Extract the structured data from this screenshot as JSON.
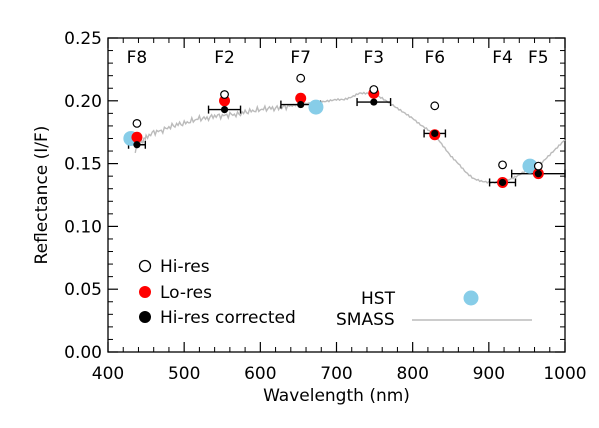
{
  "chart_data": {
    "type": "scatter",
    "xlabel": "Wavelength (nm)",
    "ylabel": "Reflectance (I/F)",
    "xlim": [
      400,
      1000
    ],
    "ylim": [
      0.0,
      0.25
    ],
    "xticks": [
      {
        "value": 400,
        "label": "400"
      },
      {
        "value": 500,
        "label": "500"
      },
      {
        "value": 600,
        "label": "600"
      },
      {
        "value": 700,
        "label": "700"
      },
      {
        "value": 800,
        "label": "800"
      },
      {
        "value": 900,
        "label": "900"
      },
      {
        "value": 1000,
        "label": "1000"
      }
    ],
    "yticks": [
      {
        "value": 0.0,
        "label": "0.00"
      },
      {
        "value": 0.05,
        "label": "0.05"
      },
      {
        "value": 0.1,
        "label": "0.10"
      },
      {
        "value": 0.15,
        "label": "0.15"
      },
      {
        "value": 0.2,
        "label": "0.20"
      },
      {
        "value": 0.25,
        "label": "0.25"
      }
    ],
    "grid": false,
    "filters": [
      {
        "label": "F8",
        "x": 438
      },
      {
        "label": "F2",
        "x": 553
      },
      {
        "label": "F7",
        "x": 653
      },
      {
        "label": "F3",
        "x": 749
      },
      {
        "label": "F6",
        "x": 829
      },
      {
        "label": "F4",
        "x": 918
      },
      {
        "label": "F5",
        "x": 965
      }
    ],
    "series": [
      {
        "name": "Hi-res",
        "marker": "open-circle",
        "color": "#000000",
        "x": [
          438,
          553,
          653,
          749,
          829,
          918,
          965
        ],
        "y": [
          0.182,
          0.205,
          0.218,
          0.209,
          0.196,
          0.149,
          0.148
        ]
      },
      {
        "name": "Lo-res",
        "marker": "filled-circle",
        "color": "#ff0000",
        "x": [
          438,
          553,
          653,
          749,
          829,
          918,
          965
        ],
        "y": [
          0.171,
          0.2,
          0.202,
          0.206,
          0.173,
          0.135,
          0.142
        ]
      },
      {
        "name": "Hi-res corrected",
        "marker": "filled-circle",
        "color": "#000000",
        "x": [
          438,
          553,
          653,
          749,
          829,
          918,
          965
        ],
        "y": [
          0.165,
          0.193,
          0.197,
          0.199,
          0.174,
          0.135,
          0.142
        ],
        "xerr": [
          11,
          21,
          26,
          22,
          14,
          17,
          35
        ]
      },
      {
        "name": "HST",
        "marker": "filled-circle",
        "color": "#87cde8",
        "x": [
          430,
          673,
          954
        ],
        "y": [
          0.17,
          0.195,
          0.148
        ]
      },
      {
        "name": "SMASS",
        "marker": "line",
        "color": "#bbbbbb",
        "x": [
          435,
          440,
          445,
          450,
          460,
          470,
          480,
          490,
          500,
          510,
          520,
          530,
          540,
          550,
          560,
          570,
          580,
          590,
          600,
          610,
          620,
          630,
          640,
          650,
          660,
          670,
          680,
          690,
          700,
          710,
          720,
          730,
          740,
          750,
          760,
          770,
          780,
          790,
          800,
          810,
          820,
          830,
          840,
          850,
          860,
          870,
          880,
          890,
          900,
          910,
          920,
          930,
          940,
          950,
          960,
          970,
          980,
          990,
          1000
        ],
        "y": [
          0.16,
          0.166,
          0.168,
          0.171,
          0.175,
          0.176,
          0.179,
          0.181,
          0.182,
          0.184,
          0.186,
          0.186,
          0.188,
          0.188,
          0.189,
          0.189,
          0.191,
          0.192,
          0.193,
          0.194,
          0.194,
          0.195,
          0.196,
          0.197,
          0.198,
          0.198,
          0.199,
          0.2,
          0.201,
          0.201,
          0.203,
          0.206,
          0.206,
          0.205,
          0.202,
          0.198,
          0.194,
          0.19,
          0.186,
          0.181,
          0.177,
          0.172,
          0.164,
          0.156,
          0.15,
          0.143,
          0.138,
          0.136,
          0.135,
          0.135,
          0.136,
          0.138,
          0.141,
          0.145,
          0.148,
          0.151,
          0.157,
          0.163,
          0.169
        ]
      }
    ],
    "legend": {
      "placement": "bottom-left",
      "left_entries": [
        "Hi-res",
        "Lo-res",
        "Hi-res corrected"
      ],
      "right_entries": [
        "HST",
        "SMASS"
      ]
    }
  }
}
